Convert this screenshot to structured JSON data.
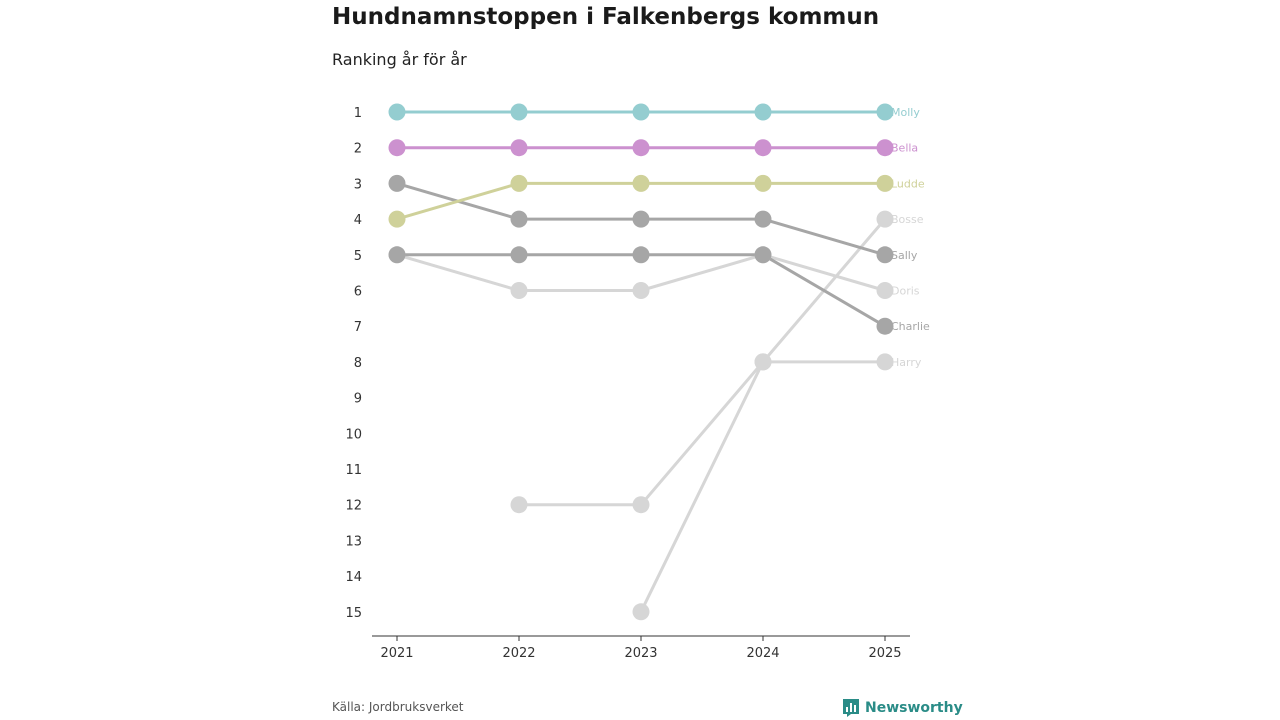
{
  "header": {
    "title": "Hundnamnstoppen i Falkenbergs kommun",
    "subtitle": "Ranking år för år"
  },
  "footer": {
    "source": "Källa: Jordbruksverket",
    "brand": "Newsworthy",
    "brand_color": "#2a8c87"
  },
  "chart_data": {
    "type": "line",
    "title": "Hundnamnstoppen i Falkenbergs kommun",
    "subtitle": "Ranking år för år",
    "xlabel": "",
    "ylabel": "",
    "x": [
      "2021",
      "2022",
      "2023",
      "2024",
      "2025"
    ],
    "ylim": [
      1,
      15
    ],
    "y_reversed": true,
    "y_ticks": [
      "1",
      "2",
      "3",
      "4",
      "5",
      "6",
      "7",
      "8",
      "9",
      "10",
      "11",
      "12",
      "13",
      "14",
      "15"
    ],
    "series": [
      {
        "name": "Harry",
        "color": "#d6d6d6",
        "values": [
          null,
          12,
          12,
          8,
          8
        ]
      },
      {
        "name": "Bosse",
        "color": "#d6d6d6",
        "values": [
          null,
          null,
          15,
          8,
          4
        ]
      },
      {
        "name": "Doris",
        "color": "#d6d6d6",
        "values": [
          5,
          6,
          6,
          5,
          6
        ]
      },
      {
        "name": "Charlie",
        "color": "#a6a6a6",
        "values": [
          5,
          5,
          5,
          5,
          7
        ]
      },
      {
        "name": "Sally",
        "color": "#a6a6a6",
        "values": [
          3,
          4,
          4,
          4,
          5
        ]
      },
      {
        "name": "Ludde",
        "color": "#cfd19a",
        "values": [
          4,
          3,
          3,
          3,
          3
        ]
      },
      {
        "name": "Bella",
        "color": "#cc91cf",
        "values": [
          2,
          2,
          2,
          2,
          2
        ]
      },
      {
        "name": "Molly",
        "color": "#94cdd0",
        "values": [
          1,
          1,
          1,
          1,
          1
        ]
      }
    ]
  }
}
